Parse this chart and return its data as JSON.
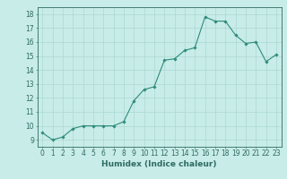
{
  "x": [
    0,
    1,
    2,
    3,
    4,
    5,
    6,
    7,
    8,
    9,
    10,
    11,
    12,
    13,
    14,
    15,
    16,
    17,
    18,
    19,
    20,
    21,
    22,
    23
  ],
  "y": [
    9.5,
    9.0,
    9.2,
    9.8,
    10.0,
    10.0,
    10.0,
    10.0,
    10.3,
    11.8,
    12.6,
    12.8,
    14.7,
    14.8,
    15.4,
    15.6,
    17.8,
    17.5,
    17.5,
    16.5,
    15.9,
    16.0,
    14.6,
    15.1
  ],
  "line_color": "#2e8b7a",
  "marker": "D",
  "marker_size": 1.8,
  "bg_color": "#c8ece8",
  "grid_color": "#add8d2",
  "grid_minor_color": "#c0e4e0",
  "xlabel": "Humidex (Indice chaleur)",
  "xlim": [
    -0.5,
    23.5
  ],
  "ylim": [
    8.5,
    18.5
  ],
  "yticks": [
    9,
    10,
    11,
    12,
    13,
    14,
    15,
    16,
    17,
    18
  ],
  "xticks": [
    0,
    1,
    2,
    3,
    4,
    5,
    6,
    7,
    8,
    9,
    10,
    11,
    12,
    13,
    14,
    15,
    16,
    17,
    18,
    19,
    20,
    21,
    22,
    23
  ],
  "tick_color": "#2e6b60",
  "label_fontsize": 6.5,
  "tick_fontsize": 5.5
}
